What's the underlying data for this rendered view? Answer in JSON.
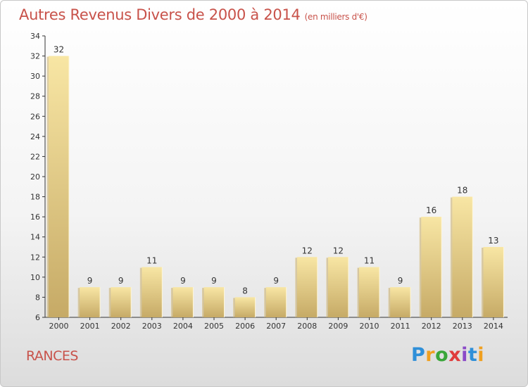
{
  "title": "Autres Revenus Divers de 2000 à 2014",
  "subtitle": "(en milliers d'€)",
  "commune": "RANCES",
  "logo": "Proxiti",
  "colors": {
    "title": "#c8524a",
    "bar_light": "#f6e3a0",
    "bar_dark": "#c9ad68",
    "axis": "#333333"
  },
  "chart_data": {
    "type": "bar",
    "title": "Autres Revenus Divers de 2000 à 2014",
    "subtitle": "(en milliers d'€)",
    "categories": [
      "2000",
      "2001",
      "2002",
      "2003",
      "2004",
      "2005",
      "2006",
      "2007",
      "2008",
      "2009",
      "2010",
      "2011",
      "2012",
      "2013",
      "2014"
    ],
    "values": [
      32,
      9,
      9,
      11,
      9,
      9,
      8,
      9,
      12,
      12,
      11,
      9,
      16,
      18,
      13
    ],
    "ylim": [
      6,
      34
    ],
    "yticks": [
      6,
      8,
      10,
      12,
      14,
      16,
      18,
      20,
      22,
      24,
      26,
      28,
      30,
      32,
      34
    ],
    "data_labels": true,
    "grid": false,
    "legend": "none"
  }
}
